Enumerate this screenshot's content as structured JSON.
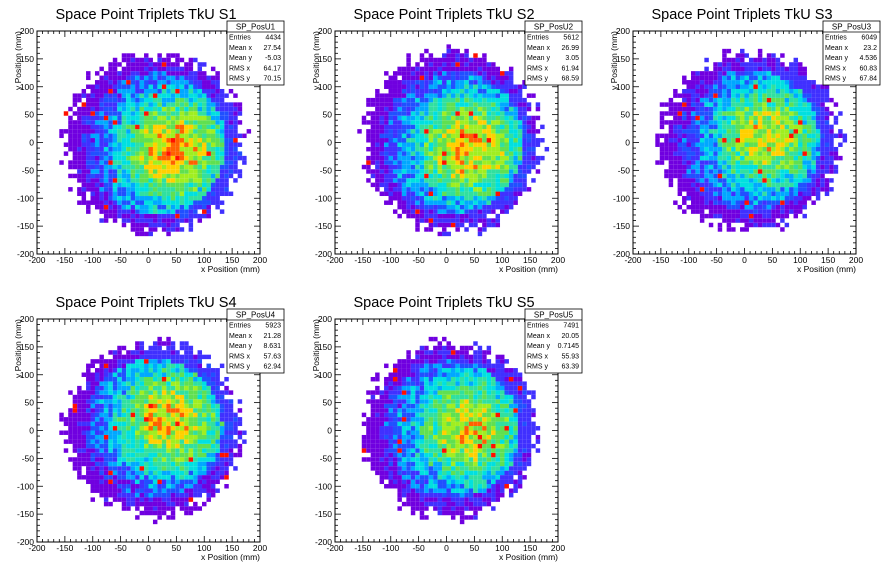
{
  "colors": {
    "palette": [
      "#7000e0",
      "#4030ff",
      "#2050ff",
      "#00a8ff",
      "#00e0e0",
      "#30e0a0",
      "#60e050",
      "#a0ee20",
      "#ffd000",
      "#ff6000",
      "#ff1000"
    ],
    "frame": "#000000",
    "background": "#ffffff"
  },
  "chart_data": [
    {
      "type": "heatmap",
      "title": "Space Point Triplets TkU S1",
      "xlabel": "x Position (mm)",
      "ylabel": "y Position (mm)",
      "xlim": [
        -200,
        200
      ],
      "ylim": [
        -200,
        200
      ],
      "xticks": [
        "-200",
        "-150",
        "-100",
        "-50",
        "0",
        "50",
        "100",
        "150",
        "200"
      ],
      "yticks": [
        "-200",
        "-150",
        "-100",
        "-50",
        "0",
        "50",
        "100",
        "150",
        "200"
      ],
      "stats": {
        "name": "SP_PosU1",
        "rows": [
          {
            "label": "Entries",
            "value": "4434"
          },
          {
            "label": "Mean x",
            "value": "27.54"
          },
          {
            "label": "Mean y",
            "value": "-5.03"
          },
          {
            "label": "RMS x",
            "value": "64.17"
          },
          {
            "label": "RMS y",
            "value": "70.15"
          }
        ]
      },
      "distribution": {
        "center_x": 27.54,
        "center_y": -5.03,
        "radius": 160,
        "peak_x": 45,
        "peak_y": -15,
        "peak_level": 0.8
      }
    },
    {
      "type": "heatmap",
      "title": "Space Point Triplets TkU S2",
      "xlabel": "x Position (mm)",
      "ylabel": "y Position (mm)",
      "xlim": [
        -200,
        200
      ],
      "ylim": [
        -200,
        200
      ],
      "xticks": [
        "-200",
        "-150",
        "-100",
        "-50",
        "0",
        "50",
        "100",
        "150",
        "200"
      ],
      "yticks": [
        "-200",
        "-150",
        "-100",
        "-50",
        "0",
        "50",
        "100",
        "150",
        "200"
      ],
      "stats": {
        "name": "SP_PosU2",
        "rows": [
          {
            "label": "Entries",
            "value": "5612"
          },
          {
            "label": "Mean x",
            "value": "26.99"
          },
          {
            "label": "Mean y",
            "value": "3.05"
          },
          {
            "label": "RMS x",
            "value": "61.94"
          },
          {
            "label": "RMS y",
            "value": "68.59"
          }
        ]
      },
      "distribution": {
        "center_x": 26.99,
        "center_y": 3.05,
        "radius": 160,
        "peak_x": 40,
        "peak_y": -10,
        "peak_level": 0.78
      }
    },
    {
      "type": "heatmap",
      "title": "Space Point Triplets TkU S3",
      "xlabel": "x Position (mm)",
      "ylabel": "y Position (mm)",
      "xlim": [
        -200,
        200
      ],
      "ylim": [
        -200,
        200
      ],
      "xticks": [
        "-200",
        "-150",
        "-100",
        "-50",
        "0",
        "50",
        "100",
        "150",
        "200"
      ],
      "yticks": [
        "-200",
        "-150",
        "-100",
        "-50",
        "0",
        "50",
        "100",
        "150",
        "200"
      ],
      "stats": {
        "name": "SP_PosU3",
        "rows": [
          {
            "label": "Entries",
            "value": "6049"
          },
          {
            "label": "Mean x",
            "value": "23.2"
          },
          {
            "label": "Mean y",
            "value": "4.536"
          },
          {
            "label": "RMS x",
            "value": "60.83"
          },
          {
            "label": "RMS y",
            "value": "67.84"
          }
        ]
      },
      "distribution": {
        "center_x": 23.2,
        "center_y": 4.536,
        "radius": 160,
        "peak_x": 40,
        "peak_y": 10,
        "peak_level": 0.72
      }
    },
    {
      "type": "heatmap",
      "title": "Space Point Triplets TkU S4",
      "xlabel": "x Position (mm)",
      "ylabel": "y Position (mm)",
      "xlim": [
        -200,
        200
      ],
      "ylim": [
        -200,
        200
      ],
      "xticks": [
        "-200",
        "-150",
        "-100",
        "-50",
        "0",
        "50",
        "100",
        "150",
        "200"
      ],
      "yticks": [
        "-200",
        "-150",
        "-100",
        "-50",
        "0",
        "50",
        "100",
        "150",
        "200"
      ],
      "stats": {
        "name": "SP_PosU4",
        "rows": [
          {
            "label": "Entries",
            "value": "5923"
          },
          {
            "label": "Mean x",
            "value": "21.28"
          },
          {
            "label": "Mean y",
            "value": "8.631"
          },
          {
            "label": "RMS x",
            "value": "57.63"
          },
          {
            "label": "RMS y",
            "value": "62.94"
          }
        ]
      },
      "distribution": {
        "center_x": 21.28,
        "center_y": 8.631,
        "radius": 155,
        "peak_x": 40,
        "peak_y": 20,
        "peak_level": 0.76
      }
    },
    {
      "type": "heatmap",
      "title": "Space Point Triplets TkU S5",
      "xlabel": "x Position (mm)",
      "ylabel": "y Position (mm)",
      "xlim": [
        -200,
        200
      ],
      "ylim": [
        -200,
        200
      ],
      "xticks": [
        "-200",
        "-150",
        "-100",
        "-50",
        "0",
        "50",
        "100",
        "150",
        "200"
      ],
      "yticks": [
        "-200",
        "-150",
        "-100",
        "-50",
        "0",
        "50",
        "100",
        "150",
        "200"
      ],
      "stats": {
        "name": "SP_PosU5",
        "rows": [
          {
            "label": "Entries",
            "value": "7491"
          },
          {
            "label": "Mean x",
            "value": "20.05"
          },
          {
            "label": "Mean y",
            "value": "0.7145"
          },
          {
            "label": "RMS x",
            "value": "55.93"
          },
          {
            "label": "RMS y",
            "value": "63.39"
          }
        ]
      },
      "distribution": {
        "center_x": 20.05,
        "center_y": 0.7145,
        "radius": 155,
        "peak_x": 40,
        "peak_y": 0,
        "peak_level": 0.74
      }
    }
  ]
}
